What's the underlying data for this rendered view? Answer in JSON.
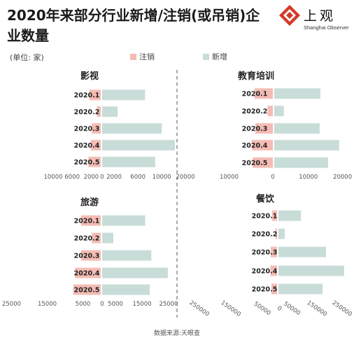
{
  "title": "2020年来部分行业新增/注销(或吊销)企业数量",
  "logo": {
    "name": "上观",
    "subtitle": "Shanghai Observer"
  },
  "unit_label": "(单位: 家)",
  "source": "数据来源:天眼查",
  "colors": {
    "cancel": "#f4bcb4",
    "new": "#c8dcd8",
    "divider": "#555555"
  },
  "legend": {
    "cancel": "注销",
    "new": "新增"
  },
  "chart_data": [
    {
      "type": "bar",
      "orientation": "diverging-horizontal",
      "title": "影视",
      "categories": [
        "2020.1",
        "2020.2",
        "2020.3",
        "2020.4",
        "2020.5"
      ],
      "series": [
        {
          "name": "注销",
          "values": [
            2400,
            800,
            1900,
            2100,
            2600
          ]
        },
        {
          "name": "新增",
          "values": [
            7200,
            2600,
            10000,
            12200,
            8900
          ]
        }
      ],
      "left_ticks": [
        10000,
        6000,
        2000
      ],
      "right_ticks": [
        0,
        2000,
        6000,
        10000
      ]
    },
    {
      "type": "bar",
      "orientation": "diverging-horizontal",
      "title": "教育培训",
      "categories": [
        "2020.1",
        "2020.2",
        "2020.3",
        "2020.4",
        "2020.5"
      ],
      "series": [
        {
          "name": "注销",
          "values": [
            4200,
            1200,
            4000,
            4800,
            4600
          ]
        },
        {
          "name": "新增",
          "values": [
            13500,
            2800,
            13300,
            19000,
            15800
          ]
        }
      ],
      "left_ticks": [
        20000,
        10000,
        0
      ],
      "right_ticks": [
        10000,
        20000
      ]
    },
    {
      "type": "bar",
      "orientation": "diverging-horizontal",
      "title": "旅游",
      "categories": [
        "2020.1",
        "2020.2",
        "2020.3",
        "2020.4",
        "2020.5"
      ],
      "series": [
        {
          "name": "注销",
          "values": [
            5500,
            2500,
            5500,
            7200,
            7700
          ]
        },
        {
          "name": "新增",
          "values": [
            16200,
            4200,
            18500,
            24700,
            17900
          ]
        }
      ],
      "left_ticks": [
        25000,
        15000,
        5000
      ],
      "right_ticks": [
        0,
        5000,
        15000,
        25000
      ]
    },
    {
      "type": "bar",
      "orientation": "diverging-horizontal",
      "title": "餐饮",
      "categories": [
        "2020.1",
        "2020.2",
        "2020.3",
        "2020.4",
        "2020.5"
      ],
      "series": [
        {
          "name": "注销",
          "values": [
            16000,
            5000,
            20000,
            21000,
            18000
          ]
        },
        {
          "name": "新增",
          "values": [
            90000,
            25000,
            190000,
            262000,
            176000
          ]
        }
      ],
      "left_ticks": [
        250000,
        150000,
        50000
      ],
      "right_ticks": [
        0,
        50000,
        150000,
        250000
      ]
    }
  ]
}
